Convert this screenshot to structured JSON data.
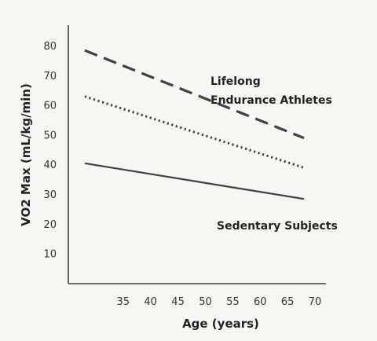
{
  "chart_data": {
    "type": "line",
    "xlabel": "Age (years)",
    "ylabel": "VO2 Max (mL/kg/min)",
    "xlim": [
      25,
      72
    ],
    "ylim": [
      0,
      87
    ],
    "x_ticks": [
      35,
      40,
      45,
      50,
      55,
      60,
      65,
      70
    ],
    "y_ticks": [
      10,
      20,
      30,
      40,
      50,
      60,
      70,
      80
    ],
    "grid": false,
    "legend": "none",
    "series": [
      {
        "x": [
          28,
          68
        ],
        "y": [
          78.5,
          49
        ],
        "style": "dashed",
        "color": "#3a4347"
      },
      {
        "x": [
          28,
          68
        ],
        "y": [
          63,
          39
        ],
        "style": "dotted",
        "color": "#3a4347"
      },
      {
        "x": [
          28,
          68
        ],
        "y": [
          40.5,
          28.5
        ],
        "style": "solid",
        "color": "#3a4347"
      }
    ],
    "annotations": [
      {
        "lines": [
          "Lifelong",
          "Endurance Athletes"
        ]
      },
      {
        "lines": [
          "Sedentary Subjects"
        ]
      }
    ]
  }
}
